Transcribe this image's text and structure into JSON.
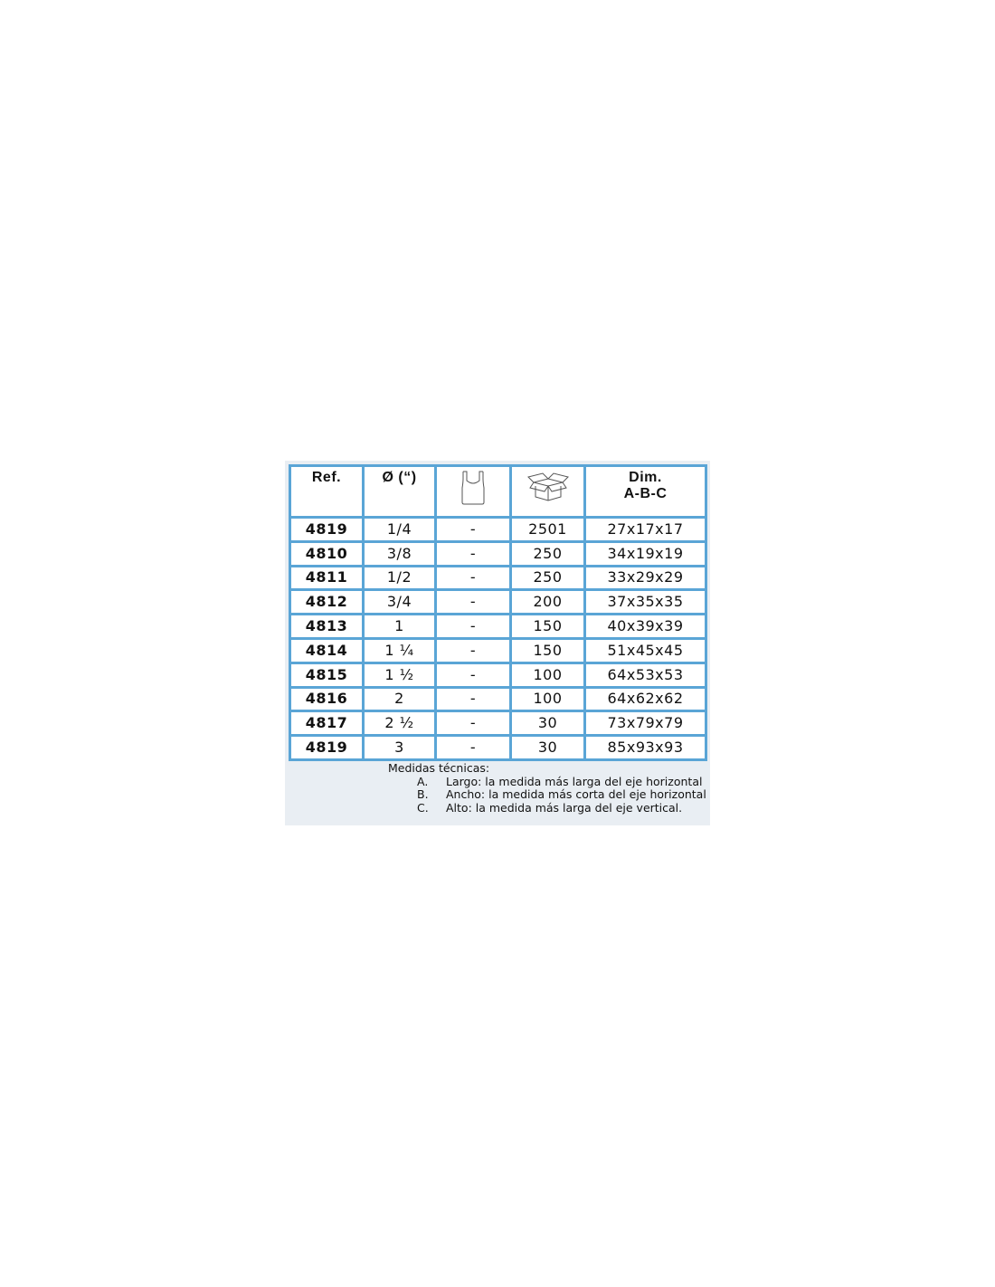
{
  "table": {
    "headers": {
      "ref": "Ref.",
      "diameter": "Ø (“)",
      "bag_icon": "bag-icon",
      "box_icon": "box-icon",
      "dim_line1": "Dim.",
      "dim_line2": "A-B-C"
    },
    "rows": [
      {
        "ref": "4819",
        "diameter": "1/4",
        "bag": "-",
        "box": "2501",
        "dim": "27x17x17"
      },
      {
        "ref": "4810",
        "diameter": "3/8",
        "bag": "-",
        "box": "250",
        "dim": "34x19x19"
      },
      {
        "ref": "4811",
        "diameter": "1/2",
        "bag": "-",
        "box": "250",
        "dim": "33x29x29"
      },
      {
        "ref": "4812",
        "diameter": "3/4",
        "bag": "-",
        "box": "200",
        "dim": "37x35x35"
      },
      {
        "ref": "4813",
        "diameter": "1",
        "bag": "-",
        "box": "150",
        "dim": "40x39x39"
      },
      {
        "ref": "4814",
        "diameter": "1 ¼",
        "bag": "-",
        "box": "150",
        "dim": "51x45x45"
      },
      {
        "ref": "4815",
        "diameter": "1 ½",
        "bag": "-",
        "box": "100",
        "dim": "64x53x53"
      },
      {
        "ref": "4816",
        "diameter": "2",
        "bag": "-",
        "box": "100",
        "dim": "64x62x62"
      },
      {
        "ref": "4817",
        "diameter": "2 ½",
        "bag": "-",
        "box": "30",
        "dim": "73x79x79"
      },
      {
        "ref": "4819",
        "diameter": "3",
        "bag": "-",
        "box": "30",
        "dim": "85x93x93"
      }
    ]
  },
  "notes": {
    "title": "Medidas técnicas:",
    "items": [
      {
        "letter": "A.",
        "text": "Largo: la medida más larga del eje horizontal"
      },
      {
        "letter": "B.",
        "text": "Ancho: la medida más corta del eje horizontal"
      },
      {
        "letter": "C.",
        "text": "Alto: la medida más larga del eje vertical."
      }
    ]
  },
  "colors": {
    "border": "#5aa5d6",
    "panel": "#e9eef3"
  }
}
